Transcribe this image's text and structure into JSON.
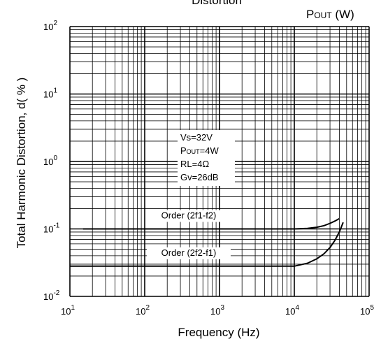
{
  "chart_data": {
    "type": "line",
    "title": "Distortion",
    "top_right_label": {
      "main": "P",
      "sub": "OUT",
      "unit": " (W)"
    },
    "xlabel": "Frequency (Hz)",
    "ylabel": "Total Harmonic Distortion, d( % )",
    "x_scale": "log",
    "y_scale": "log",
    "xlim": [
      10,
      100000
    ],
    "ylim": [
      0.01,
      100
    ],
    "grid": true,
    "x_ticks": [
      {
        "base": "10",
        "exp": "1"
      },
      {
        "base": "10",
        "exp": "2"
      },
      {
        "base": "10",
        "exp": "3"
      },
      {
        "base": "10",
        "exp": "4"
      },
      {
        "base": "10",
        "exp": "5"
      }
    ],
    "y_ticks": [
      {
        "base": "10",
        "exp": "-2"
      },
      {
        "base": "10",
        "exp": "-1"
      },
      {
        "base": "10",
        "exp": "0"
      },
      {
        "base": "10",
        "exp": "1"
      },
      {
        "base": "10",
        "exp": "2"
      }
    ],
    "conditions": [
      {
        "main": "Vs=32V"
      },
      {
        "main": "P",
        "sub": "OUT",
        "rest": "=4W"
      },
      {
        "main": "RL=4Ω"
      },
      {
        "main": "Gv=26dB"
      }
    ],
    "series": [
      {
        "name": "Order (2f1-f2)",
        "x": [
          15,
          100,
          1000,
          10000,
          15000,
          20000,
          25000,
          30000,
          35000,
          40000
        ],
        "y": [
          0.1,
          0.1,
          0.1,
          0.1,
          0.102,
          0.106,
          0.112,
          0.121,
          0.131,
          0.142
        ]
      },
      {
        "name": "Order (2f2-f1)",
        "x": [
          10,
          100,
          1000,
          10000,
          15000,
          20000,
          25000,
          30000,
          35000,
          40000,
          45000
        ],
        "y": [
          0.028,
          0.028,
          0.028,
          0.028,
          0.031,
          0.036,
          0.043,
          0.053,
          0.068,
          0.09,
          0.125
        ]
      }
    ]
  }
}
